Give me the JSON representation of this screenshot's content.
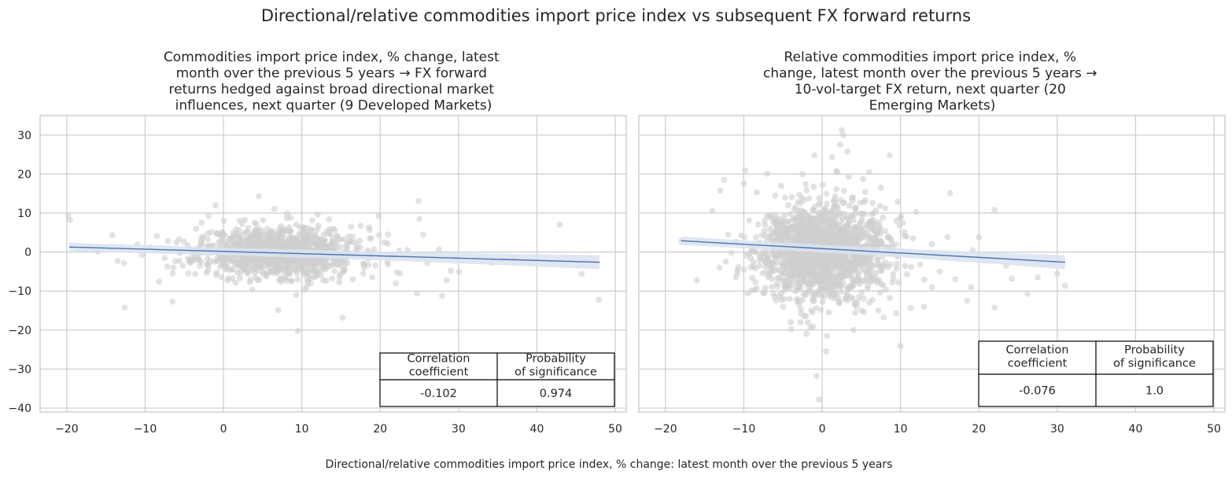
{
  "figure": {
    "title": "Directional/relative commodities import price index vs subsequent FX forward returns",
    "xlabel": "Directional/relative commodities import price index, % change: latest month over the previous 5 years",
    "colors": {
      "point": "#cfcfcf",
      "regression_line": "#4c72b0",
      "confidence_band": "#dbe3f0",
      "grid": "#cccccc",
      "axes_edge": "#cccccc"
    }
  },
  "chart_data": [
    {
      "type": "scatter",
      "title_lines": [
        "Commodities import price index, % change, latest",
        "month over the previous 5 years → FX forward",
        "returns hedged against broad directional market",
        "influences, next quarter (9 Developed Markets)"
      ],
      "xlim": [
        -23.4,
        51.4
      ],
      "ylim": [
        -41,
        35
      ],
      "xticks": [
        -20,
        -10,
        0,
        10,
        20,
        30,
        40,
        50
      ],
      "xtick_labels": [
        "−20",
        "−10",
        "0",
        "10",
        "20",
        "30",
        "40",
        "50"
      ],
      "yticks": [
        -40,
        -30,
        -20,
        -10,
        0,
        10,
        20,
        30
      ],
      "ytick_labels": [
        "−40",
        "−30",
        "−20",
        "−10",
        "0",
        "10",
        "20",
        "30"
      ],
      "grid": true,
      "regression": {
        "x": [
          -19.7,
          48
        ],
        "y": [
          1.3,
          -2.6
        ],
        "ci_halfwidth": [
          1.0,
          1.8
        ]
      },
      "cloud": {
        "center_x": 7,
        "center_y": 0,
        "sd_x": 5,
        "sd_y": 3.2,
        "count": 1100,
        "seed": 11
      },
      "points": [
        [
          -19.8,
          9.3
        ],
        [
          -19.6,
          8.2
        ],
        [
          -16,
          0.2
        ],
        [
          -14.2,
          4.3
        ],
        [
          -13.5,
          -2.3
        ],
        [
          -12.7,
          -2.8
        ],
        [
          -12.6,
          -14.2
        ],
        [
          -11,
          1.9
        ],
        [
          -10.4,
          -0.7
        ],
        [
          -8.5,
          4.1
        ],
        [
          -8.2,
          -7.6
        ],
        [
          -6.5,
          -12.7
        ],
        [
          -5.2,
          -3.5
        ],
        [
          -3.5,
          6
        ],
        [
          -2,
          -4.8
        ],
        [
          0.5,
          -7.3
        ],
        [
          -2.8,
          7.5
        ],
        [
          4.5,
          14.3
        ],
        [
          6.5,
          11.1
        ],
        [
          7,
          -14.9
        ],
        [
          9.3,
          -11
        ],
        [
          9.5,
          -20.2
        ],
        [
          12,
          9.6
        ],
        [
          15.2,
          -16.8
        ],
        [
          17.5,
          6.7
        ],
        [
          19.8,
          9.2
        ],
        [
          21,
          4.5
        ],
        [
          22.5,
          -5.5
        ],
        [
          24.9,
          13.1
        ],
        [
          25,
          8.5
        ],
        [
          25.5,
          4.5
        ],
        [
          26,
          -2.8
        ],
        [
          27.5,
          0.7
        ],
        [
          28.5,
          -7.2
        ],
        [
          29,
          -4.8
        ],
        [
          29.8,
          -1.4
        ],
        [
          27.9,
          -11.2
        ],
        [
          24.7,
          -10.6
        ],
        [
          22,
          -8
        ],
        [
          34.2,
          -2.8
        ],
        [
          36.9,
          -1.5
        ],
        [
          42.9,
          7
        ],
        [
          45.7,
          -5.6
        ],
        [
          47.9,
          -12.2
        ],
        [
          20.5,
          2.5
        ],
        [
          18.5,
          -3.2
        ],
        [
          16,
          4
        ],
        [
          21.5,
          -1
        ],
        [
          23.5,
          0.5
        ],
        [
          19,
          -6.5
        ],
        [
          17,
          1.5
        ],
        [
          14,
          6
        ],
        [
          16.5,
          -7
        ],
        [
          -7.5,
          -1.5
        ],
        [
          -9.3,
          1.2
        ],
        [
          -6,
          2.5
        ],
        [
          -4.5,
          -5.5
        ]
      ],
      "table": {
        "headers": [
          "Correlation\ncoefficient",
          "Probability\nof significance"
        ],
        "values": [
          "-0.102",
          "0.974"
        ]
      }
    },
    {
      "type": "scatter",
      "title_lines": [
        "Relative commodities import price index, %",
        "change, latest month over the previous 5 years →",
        "10-vol-target FX return, next quarter (20",
        "Emerging Markets)"
      ],
      "xlim": [
        -23.4,
        51.4
      ],
      "ylim": [
        -41,
        35
      ],
      "xticks": [
        -20,
        -10,
        0,
        10,
        20,
        30,
        40,
        50
      ],
      "xtick_labels": [
        "−20",
        "−10",
        "0",
        "10",
        "20",
        "30",
        "40",
        "50"
      ],
      "yticks": [
        -40,
        -30,
        -20,
        -10,
        0,
        10,
        20,
        30
      ],
      "ytick_labels": [
        "−40",
        "−30",
        "−20",
        "−10",
        "0",
        "10",
        "20",
        "30"
      ],
      "grid": true,
      "regression": {
        "x": [
          -18,
          31
        ],
        "y": [
          2.9,
          -2.6
        ],
        "ci_halfwidth": [
          1.0,
          1.8
        ]
      },
      "cloud": {
        "center_x": 0,
        "center_y": 0,
        "sd_x": 4,
        "sd_y": 6,
        "count": 1700,
        "seed": 29
      },
      "points": [
        [
          -18,
          2.8
        ],
        [
          -16,
          -7.3
        ],
        [
          -14,
          10.6
        ],
        [
          -13,
          15.8
        ],
        [
          -12.5,
          18.5
        ],
        [
          -10,
          17.6
        ],
        [
          -9.8,
          20.9
        ],
        [
          -10,
          -4.5
        ],
        [
          -9.5,
          -10.6
        ],
        [
          -8,
          -3.5
        ],
        [
          -7,
          20.1
        ],
        [
          -6,
          14.5
        ],
        [
          -4,
          -18
        ],
        [
          -2.9,
          -12.6
        ],
        [
          -2.3,
          -16.4
        ],
        [
          -2,
          -21
        ],
        [
          -1.5,
          -19.3
        ],
        [
          -0.7,
          -31.8
        ],
        [
          -0.4,
          -37.8
        ],
        [
          0.5,
          -25.5
        ],
        [
          0.6,
          -21.5
        ],
        [
          1.8,
          20.8
        ],
        [
          2.3,
          27.5
        ],
        [
          2.5,
          31.2
        ],
        [
          2.7,
          30
        ],
        [
          3.2,
          25.8
        ],
        [
          8.6,
          24.8
        ],
        [
          9.5,
          8
        ],
        [
          10,
          -24.1
        ],
        [
          10.3,
          7.5
        ],
        [
          10.8,
          4
        ],
        [
          11.6,
          3.5
        ],
        [
          13,
          -14
        ],
        [
          14,
          -9
        ],
        [
          15,
          -5
        ],
        [
          16.3,
          15.1
        ],
        [
          17,
          -7
        ],
        [
          18.5,
          -12.5
        ],
        [
          19,
          -9
        ],
        [
          20,
          3.8
        ],
        [
          22,
          10.8
        ],
        [
          22,
          -14.2
        ],
        [
          24.2,
          -6.8
        ],
        [
          26.2,
          -10.7
        ],
        [
          27.5,
          -6.5
        ],
        [
          30,
          -5.5
        ],
        [
          31,
          -8.6
        ],
        [
          23.5,
          -3.5
        ],
        [
          19.2,
          0.5
        ],
        [
          12,
          10.3
        ],
        [
          7.5,
          16.5
        ],
        [
          6,
          20.5
        ],
        [
          -1,
          24.8
        ],
        [
          -2.5,
          20
        ],
        [
          4,
          -20
        ],
        [
          5,
          -15
        ],
        [
          -5,
          -14
        ],
        [
          -11,
          -6.5
        ],
        [
          -12,
          4.5
        ],
        [
          -6,
          9.5
        ],
        [
          14,
          2
        ],
        [
          16,
          3.8
        ],
        [
          12.5,
          -3.2
        ]
      ],
      "table": {
        "headers": [
          "Correlation\ncoefficient",
          "Probability\nof significance"
        ],
        "values": [
          "-0.076",
          "1.0"
        ]
      }
    }
  ]
}
